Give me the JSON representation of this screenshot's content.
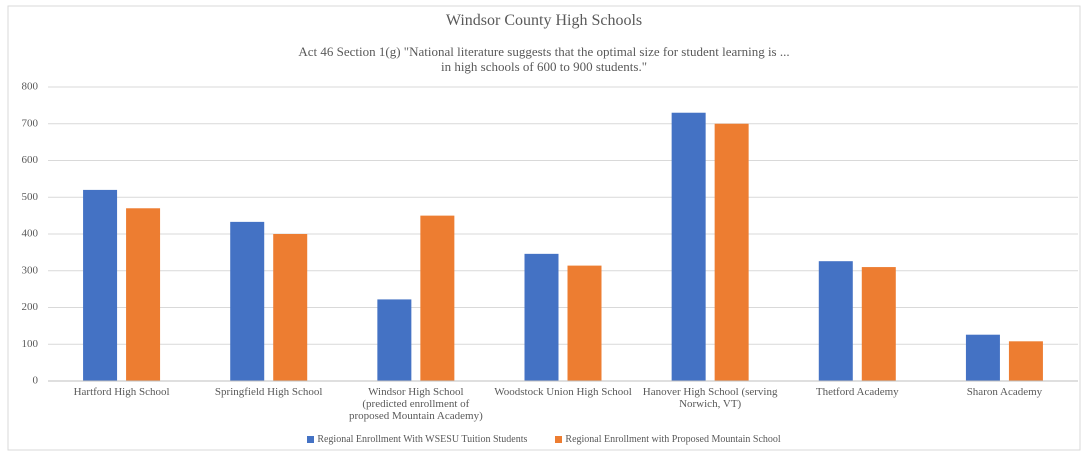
{
  "chart_data": {
    "type": "bar",
    "title": "Windsor County High Schools",
    "subtitle": "Act 46 Section 1(g) \"National literature suggests that the optimal size for student learning is ... in high schools of 600 to 900 students.\"",
    "categories": [
      "Hartford High School",
      "Springfield High School",
      "Windsor High School (predicted enrollment of proposed Mountain Academy)",
      "Woodstock Union High School",
      "Hanover High School (serving Norwich, VT)",
      "Thetford Academy",
      "Sharon Academy"
    ],
    "series": [
      {
        "name": "Regional Enrollment With WSESU Tuition Students",
        "color": "#4472c4",
        "values": [
          520,
          433,
          222,
          346,
          730,
          326,
          126
        ]
      },
      {
        "name": "Regional Enrollment with Proposed Mountain School",
        "color": "#ed7d31",
        "values": [
          470,
          400,
          450,
          314,
          700,
          310,
          108
        ]
      }
    ],
    "ylim": [
      0,
      800
    ],
    "yticks": [
      0,
      100,
      200,
      300,
      400,
      500,
      600,
      700,
      800
    ],
    "grid": true,
    "legend": "bottom"
  }
}
